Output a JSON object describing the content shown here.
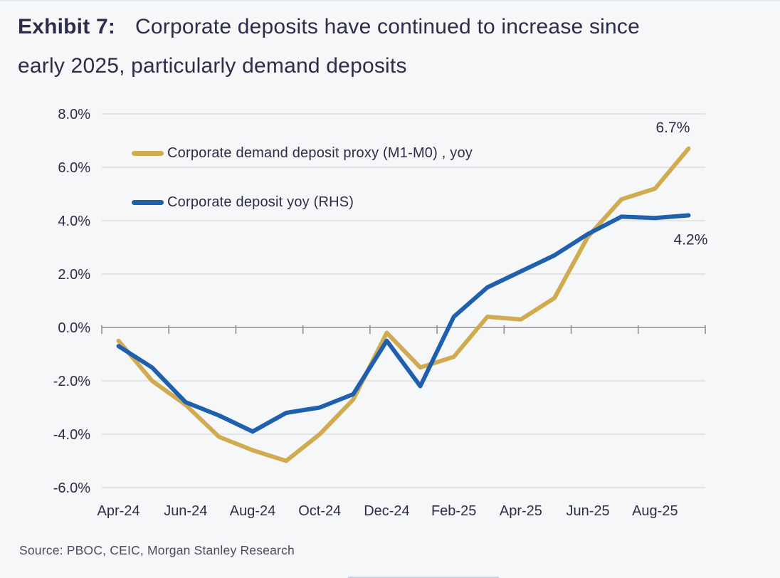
{
  "title": {
    "exhibit_label": "Exhibit 7:",
    "line1": "Corporate deposits have continued to increase since",
    "line2": "early 2025, particularly demand deposits"
  },
  "source": "Source: PBOC, CEIC, Morgan Stanley Research",
  "colors": {
    "gold_series": "#d1ab4f",
    "blue_series": "#1e5fae",
    "gridline": "#d8d9da",
    "axis_line": "#8f8f92",
    "text": "#2e2c49",
    "background": "#f6f7f8"
  },
  "chart_data": {
    "type": "line",
    "title": "Exhibit 7: Corporate deposits have continued to increase since early 2025, particularly demand deposits",
    "xlabel": "",
    "ylabel": "",
    "ylim": [
      -6,
      8
    ],
    "y_tick_step": 2,
    "grid": true,
    "legend_position": "top-left-inside",
    "y_tick_labels": [
      "8.0%",
      "6.0%",
      "4.0%",
      "2.0%",
      "0.0%",
      "-2.0%",
      "-4.0%",
      "-6.0%"
    ],
    "x_tick_labels": [
      "Apr-24",
      "Jun-24",
      "Aug-24",
      "Oct-24",
      "Dec-24",
      "Feb-25",
      "Apr-25",
      "Jun-25",
      "Aug-25"
    ],
    "categories": [
      "Apr-24",
      "May-24",
      "Jun-24",
      "Jul-24",
      "Aug-24",
      "Sep-24",
      "Oct-24",
      "Nov-24",
      "Dec-24",
      "Jan-25",
      "Feb-25",
      "Mar-25",
      "Apr-25",
      "May-25",
      "Jun-25",
      "Jul-25",
      "Aug-25",
      "Sep-25"
    ],
    "series": [
      {
        "name": "Corporate demand deposit proxy (M1-M0) , yoy",
        "color": "#d1ab4f",
        "end_label": "6.7%",
        "values": [
          -0.5,
          -2.0,
          -2.9,
          -4.1,
          -4.6,
          -5.0,
          -4.0,
          -2.7,
          -0.2,
          -1.5,
          -1.1,
          0.4,
          0.3,
          1.1,
          3.4,
          4.8,
          5.2,
          6.7
        ]
      },
      {
        "name": "Corporate deposit yoy (RHS)",
        "color": "#1e5fae",
        "end_label": "4.2%",
        "values": [
          -0.7,
          -1.5,
          -2.8,
          -3.3,
          -3.9,
          -3.2,
          -3.0,
          -2.5,
          -0.5,
          -2.2,
          0.4,
          1.5,
          2.1,
          2.7,
          3.5,
          4.15,
          4.1,
          4.2
        ]
      }
    ]
  }
}
